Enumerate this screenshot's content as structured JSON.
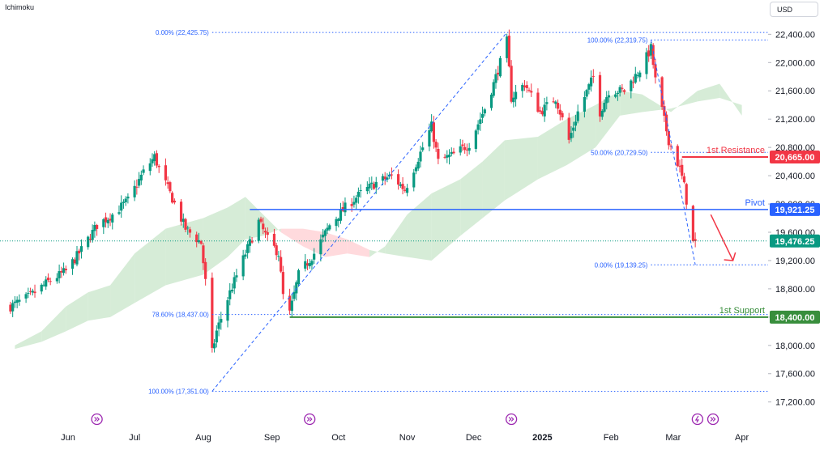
{
  "header": {
    "indicator": "Ichimoku",
    "currency": "USD"
  },
  "colors": {
    "up": "#089981",
    "down": "#f23645",
    "fib": "#2962ff",
    "pivot": "#2962ff",
    "resistance": "#f23645",
    "support": "#388e3c",
    "current": "#089981",
    "cloud_bull": "#c8e6c9",
    "cloud_bear": "#ffcdd2",
    "event_icon": "#9c27b0"
  },
  "chart_data": {
    "type": "candlestick",
    "instrument_note": "",
    "y_axis": {
      "range": [
        17100,
        22600
      ],
      "ticks": [
        17200,
        17600,
        18000,
        18400,
        18800,
        19200,
        19600,
        20000,
        20400,
        20800,
        21200,
        21600,
        22000,
        22400
      ],
      "tick_labels": [
        "17,200.00",
        "17,600.00",
        "18,000.00",
        "18,400.00",
        "18,800.00",
        "19,200.00",
        "19,600.00",
        "20,000.00",
        "20,400.00",
        "20,800.00",
        "21,200.00",
        "21,600.00",
        "22,000.00",
        "22,400.00"
      ]
    },
    "x_axis": {
      "labels": [
        {
          "label": "Jun",
          "bold": false
        },
        {
          "label": "Jul",
          "bold": false
        },
        {
          "label": "Aug",
          "bold": false
        },
        {
          "label": "Sep",
          "bold": false
        },
        {
          "label": "Oct",
          "bold": false
        },
        {
          "label": "Nov",
          "bold": false
        },
        {
          "label": "Dec",
          "bold": false
        },
        {
          "label": "2025",
          "bold": true
        },
        {
          "label": "Feb",
          "bold": false
        },
        {
          "label": "Mar",
          "bold": false
        },
        {
          "label": "Apr",
          "bold": false
        }
      ],
      "start": "2024-05-02",
      "end": "2025-04-07"
    },
    "price_waypoints": [
      [
        "2024-05-06",
        18550
      ],
      [
        "2024-05-15",
        18700
      ],
      [
        "2024-05-23",
        18900
      ],
      [
        "2024-05-31",
        19050
      ],
      [
        "2024-06-07",
        19350
      ],
      [
        "2024-06-14",
        19700
      ],
      [
        "2024-06-21",
        19850
      ],
      [
        "2024-06-28",
        20050
      ],
      [
        "2024-07-05",
        20450
      ],
      [
        "2024-07-10",
        20670
      ],
      [
        "2024-07-12",
        20500
      ],
      [
        "2024-07-17",
        20150
      ],
      [
        "2024-07-24",
        19650
      ],
      [
        "2024-07-31",
        19450
      ],
      [
        "2024-08-02",
        18900
      ],
      [
        "2024-08-05",
        17900
      ],
      [
        "2024-08-07",
        18200
      ],
      [
        "2024-08-13",
        18750
      ],
      [
        "2024-08-20",
        19300
      ],
      [
        "2024-08-26",
        19750
      ],
      [
        "2024-08-30",
        19500
      ],
      [
        "2024-09-04",
        19300
      ],
      [
        "2024-09-06",
        18700
      ],
      [
        "2024-09-09",
        18450
      ],
      [
        "2024-09-13",
        19000
      ],
      [
        "2024-09-20",
        19300
      ],
      [
        "2024-09-27",
        19700
      ],
      [
        "2024-10-04",
        19950
      ],
      [
        "2024-10-11",
        20150
      ],
      [
        "2024-10-18",
        20300
      ],
      [
        "2024-10-25",
        20400
      ],
      [
        "2024-10-31",
        20200
      ],
      [
        "2024-11-08",
        20800
      ],
      [
        "2024-11-12",
        21100
      ],
      [
        "2024-11-15",
        20600
      ],
      [
        "2024-11-22",
        20700
      ],
      [
        "2024-11-29",
        20850
      ],
      [
        "2024-12-06",
        21350
      ],
      [
        "2024-12-10",
        21700
      ],
      [
        "2024-12-16",
        22300
      ],
      [
        "2024-12-18",
        21500
      ],
      [
        "2024-12-24",
        21700
      ],
      [
        "2024-12-31",
        21300
      ],
      [
        "2025-01-07",
        21500
      ],
      [
        "2025-01-13",
        20900
      ],
      [
        "2025-01-17",
        21300
      ],
      [
        "2025-01-24",
        21800
      ],
      [
        "2025-01-27",
        21300
      ],
      [
        "2025-01-31",
        21600
      ],
      [
        "2025-02-07",
        21600
      ],
      [
        "2025-02-14",
        21900
      ],
      [
        "2025-02-19",
        22200
      ],
      [
        "2025-02-21",
        21750
      ],
      [
        "2025-02-27",
        20900
      ],
      [
        "2025-03-04",
        20500
      ],
      [
        "2025-03-06",
        20250
      ],
      [
        "2025-03-10",
        19450
      ],
      [
        "2025-03-11",
        19476.25
      ]
    ],
    "ichimoku_cloud": [
      [
        "2024-05-08",
        18000,
        17950
      ],
      [
        "2024-05-20",
        18200,
        18050
      ],
      [
        "2024-05-31",
        18550,
        18200
      ],
      [
        "2024-06-10",
        18750,
        18350
      ],
      [
        "2024-06-20",
        18850,
        18400
      ],
      [
        "2024-07-01",
        19300,
        18600
      ],
      [
        "2024-07-15",
        19650,
        18850
      ],
      [
        "2024-08-01",
        19800,
        19000
      ],
      [
        "2024-08-12",
        19950,
        19250
      ],
      [
        "2024-08-20",
        20100,
        19500
      ],
      [
        "2024-08-28",
        19850,
        19550
      ],
      [
        "2024-09-05",
        19600,
        19650
      ],
      [
        "2024-09-15",
        19400,
        19650
      ],
      [
        "2024-09-25",
        19250,
        19600
      ],
      [
        "2024-10-05",
        19300,
        19500
      ],
      [
        "2024-10-15",
        19250,
        19350
      ],
      [
        "2024-10-22",
        19400,
        19300
      ],
      [
        "2024-11-01",
        19850,
        19250
      ],
      [
        "2024-11-12",
        20150,
        19200
      ],
      [
        "2024-11-25",
        20350,
        19550
      ],
      [
        "2024-12-05",
        20600,
        19800
      ],
      [
        "2024-12-15",
        20900,
        20050
      ],
      [
        "2024-12-30",
        20950,
        20350
      ],
      [
        "2025-01-12",
        21200,
        20550
      ],
      [
        "2025-01-25",
        21400,
        20800
      ],
      [
        "2025-02-05",
        21600,
        21250
      ],
      [
        "2025-02-15",
        21550,
        21300
      ],
      [
        "2025-02-28",
        21300,
        21350
      ],
      [
        "2025-03-12",
        21600,
        21450
      ],
      [
        "2025-03-22",
        21700,
        21500
      ],
      [
        "2025-04-01",
        21250,
        21400
      ]
    ],
    "lines": {
      "pivot": {
        "value": 19921.25,
        "label": "Pivot",
        "price_label": "19,921.25",
        "from": "2024-08-22"
      },
      "resistance": {
        "value": 20665.0,
        "label": "1st Resistance",
        "price_label": "20,665.00",
        "from": "2025-03-05"
      },
      "support": {
        "value": 18400.0,
        "label": "1st Support",
        "price_label": "18,400.00",
        "from": "2024-09-09"
      },
      "current": {
        "value": 19476.25,
        "price_label": "19,476.25"
      }
    },
    "fibonacci": [
      {
        "ratio": "0.00%",
        "value": 22425.75,
        "label": "0.00% (22,425.75)",
        "from": "2024-08-05",
        "to": "2024-12-16",
        "label_side": "left"
      },
      {
        "ratio": "78.60%",
        "value": 18437.0,
        "label": "78.60% (18,437.00)",
        "from": "2024-08-05",
        "to": "2024-09-09",
        "label_side": "left"
      },
      {
        "ratio": "100.00%",
        "value": 17351.0,
        "label": "100.00% (17,351.00)",
        "from": "2024-08-05",
        "to": "2024-08-05",
        "label_side": "left"
      },
      {
        "ratio": "100.00%",
        "value": 22319.75,
        "label": "100.00% (22,319.75)",
        "from": "2025-02-19",
        "to": "2025-02-19",
        "label_side": "left"
      },
      {
        "ratio": "50.00%",
        "value": 20729.5,
        "label": "50.00% (20,729.50)",
        "from": "2025-02-19",
        "to": "2025-03-11",
        "label_side": "left"
      },
      {
        "ratio": "0.00%",
        "value": 19139.25,
        "label": "0.00% (19,139.25)",
        "from": "2025-02-19",
        "to": "2025-03-11",
        "label_side": "left"
      }
    ],
    "trend_lines": [
      {
        "from": [
          "2024-08-05",
          17351
        ],
        "to": [
          "2024-12-16",
          22425.75
        ]
      },
      {
        "from": [
          "2025-02-19",
          22319.75
        ],
        "to": [
          "2025-03-11",
          19139.25
        ]
      }
    ],
    "forecast_arrow": {
      "from": [
        "2025-03-18",
        19850
      ],
      "to": [
        "2025-03-28",
        19200
      ],
      "color": "#f23645"
    },
    "event_markers": [
      {
        "date": "2024-06-14",
        "kind": "event"
      },
      {
        "date": "2024-09-18",
        "kind": "event"
      },
      {
        "date": "2024-12-18",
        "kind": "event"
      },
      {
        "date": "2025-03-12",
        "kind": "lightning"
      },
      {
        "date": "2025-03-19",
        "kind": "event"
      }
    ]
  }
}
